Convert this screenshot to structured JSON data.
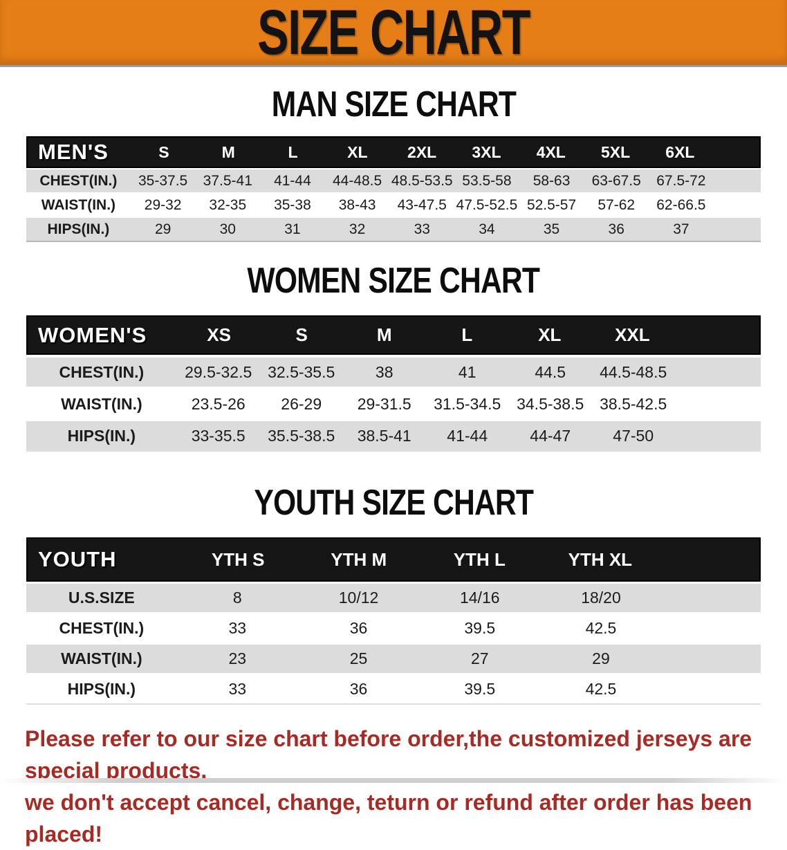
{
  "banner": {
    "title": "SIZE CHART"
  },
  "colors": {
    "banner_bg": "#e67e17",
    "table_header_bg": "#161616",
    "row_alt_bg": "#dcdcdc",
    "disclaimer_red": "#a62b24"
  },
  "sections": [
    {
      "heading": "MAN SIZE CHART",
      "group_label": "MEN'S",
      "sizes": [
        "S",
        "M",
        "L",
        "XL",
        "2XL",
        "3XL",
        "4XL",
        "5XL",
        "6XL"
      ],
      "rows": [
        {
          "label": "CHEST(IN.)",
          "values": [
            "35-37.5",
            "37.5-41",
            "41-44",
            "44-48.5",
            "48.5-53.5",
            "53.5-58",
            "58-63",
            "63-67.5",
            "67.5-72"
          ]
        },
        {
          "label": "WAIST(IN.)",
          "values": [
            "29-32",
            "32-35",
            "35-38",
            "38-43",
            "43-47.5",
            "47.5-52.5",
            "52.5-57",
            "57-62",
            "62-66.5"
          ]
        },
        {
          "label": "HIPS(IN.)",
          "values": [
            "29",
            "30",
            "31",
            "32",
            "33",
            "34",
            "35",
            "36",
            "37"
          ]
        }
      ]
    },
    {
      "heading": "WOMEN SIZE CHART",
      "group_label": "WOMEN'S",
      "sizes": [
        "XS",
        "S",
        "M",
        "L",
        "XL",
        "XXL"
      ],
      "rows": [
        {
          "label": "CHEST(IN.)",
          "values": [
            "29.5-32.5",
            "32.5-35.5",
            "38",
            "41",
            "44.5",
            "44.5-48.5"
          ]
        },
        {
          "label": "WAIST(IN.)",
          "values": [
            "23.5-26",
            "26-29",
            "29-31.5",
            "31.5-34.5",
            "34.5-38.5",
            "38.5-42.5"
          ]
        },
        {
          "label": "HIPS(IN.)",
          "values": [
            "33-35.5",
            "35.5-38.5",
            "38.5-41",
            "41-44",
            "44-47",
            "47-50"
          ]
        }
      ]
    },
    {
      "heading": "YOUTH SIZE CHART",
      "group_label": "YOUTH",
      "sizes": [
        "YTH S",
        "YTH M",
        "YTH L",
        "YTH XL"
      ],
      "rows": [
        {
          "label": "U.S.SIZE",
          "values": [
            "8",
            "10/12",
            "14/16",
            "18/20"
          ]
        },
        {
          "label": "CHEST(IN.)",
          "values": [
            "33",
            "36",
            "39.5",
            "42.5"
          ]
        },
        {
          "label": "WAIST(IN.)",
          "values": [
            "23",
            "25",
            "27",
            "29"
          ]
        },
        {
          "label": "HIPS(IN.)",
          "values": [
            "33",
            "36",
            "39.5",
            "42.5"
          ]
        }
      ]
    }
  ],
  "footer": {
    "line1": "Please refer to our size chart before order,the customized jerseys are special products,",
    "line2": "we don't accept cancel, change, teturn or refund after order has been placed!"
  }
}
